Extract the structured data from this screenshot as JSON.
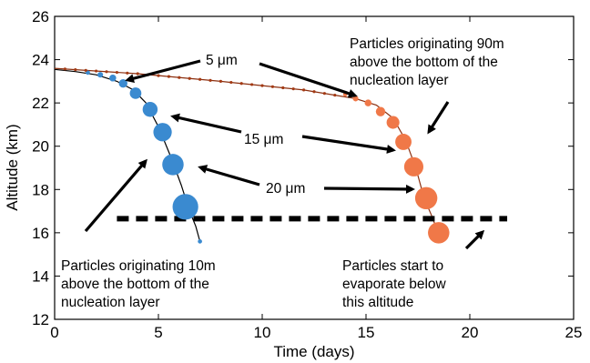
{
  "chart_data": {
    "type": "scatter",
    "xlabel": "Time (days)",
    "ylabel": "Altitude (km)",
    "xlim": [
      0,
      25
    ],
    "ylim": [
      12,
      26
    ],
    "xticks": [
      0,
      5,
      10,
      15,
      20,
      25
    ],
    "yticks": [
      12,
      14,
      16,
      18,
      20,
      22,
      24,
      26
    ],
    "grid": false,
    "colors": {
      "blue": "#3a8ad0",
      "orange": "#f07848",
      "track": "#000000",
      "track_orange": "#8b2e0e",
      "threshold": "#000000"
    },
    "series": [
      {
        "color": "blue",
        "curve": [
          [
            0,
            23.55
          ],
          [
            1,
            23.45
          ],
          [
            2,
            23.3
          ],
          [
            3,
            23.0
          ],
          [
            3.8,
            22.6
          ],
          [
            4.4,
            22.0
          ],
          [
            5.0,
            20.9
          ],
          [
            5.6,
            19.5
          ],
          [
            6.1,
            18.2
          ],
          [
            6.5,
            17.0
          ],
          [
            6.8,
            16.3
          ],
          [
            7.0,
            15.6
          ]
        ],
        "particles": [
          {
            "x": 1.6,
            "y": 23.4,
            "size": 1
          },
          {
            "x": 2.2,
            "y": 23.3,
            "size": 1.3
          },
          {
            "x": 2.8,
            "y": 23.15,
            "size": 1.6
          },
          {
            "x": 3.3,
            "y": 22.9,
            "size": 2
          },
          {
            "x": 3.9,
            "y": 22.45,
            "size": 2.7
          },
          {
            "x": 4.6,
            "y": 21.7,
            "size": 3.5
          },
          {
            "x": 5.2,
            "y": 20.65,
            "size": 4.3
          },
          {
            "x": 5.7,
            "y": 19.15,
            "size": 5
          },
          {
            "x": 6.3,
            "y": 17.2,
            "size": 6
          },
          {
            "x": 7.0,
            "y": 15.6,
            "size": 1
          }
        ]
      },
      {
        "color": "orange",
        "curve": [
          [
            0,
            23.6
          ],
          [
            4,
            23.35
          ],
          [
            8,
            23.0
          ],
          [
            12,
            22.6
          ],
          [
            14.5,
            22.2
          ],
          [
            15.5,
            21.9
          ],
          [
            16.3,
            21.3
          ],
          [
            16.9,
            20.3
          ],
          [
            17.4,
            19.0
          ],
          [
            17.8,
            17.6
          ],
          [
            18.2,
            16.7
          ],
          [
            18.5,
            15.9
          ]
        ],
        "small_dots_x": [
          0.5,
          1.0,
          1.5,
          2.0,
          2.5,
          3.0,
          3.5,
          4.0,
          4.5,
          5.0,
          5.5,
          6.0,
          6.5,
          7.0,
          7.5,
          8.0,
          8.5,
          9.0,
          9.5,
          10.0,
          10.5,
          11.0,
          11.5,
          12.0,
          12.5,
          13.0,
          13.5
        ],
        "particles": [
          {
            "x": 14.0,
            "y": 22.4,
            "size": 1
          },
          {
            "x": 14.5,
            "y": 22.2,
            "size": 1.3
          },
          {
            "x": 15.1,
            "y": 22.0,
            "size": 1.6
          },
          {
            "x": 15.7,
            "y": 21.6,
            "size": 2.2
          },
          {
            "x": 16.3,
            "y": 21.1,
            "size": 3
          },
          {
            "x": 16.8,
            "y": 20.2,
            "size": 3.8
          },
          {
            "x": 17.3,
            "y": 19.05,
            "size": 4.5
          },
          {
            "x": 17.9,
            "y": 17.6,
            "size": 5.2
          },
          {
            "x": 18.5,
            "y": 16.0,
            "size": 5
          }
        ]
      }
    ],
    "threshold": {
      "y": 16.65,
      "x_start": 3.0,
      "x_end": 21.8
    },
    "annotations": {
      "label_5um": "5 μm",
      "label_15um": "15 μm",
      "label_20um": "20 μm",
      "top_right": [
        "Particles originating 90m",
        "above the bottom of the",
        "nucleation layer"
      ],
      "bottom_left": [
        "Particles originating 10m",
        "above the bottom of the",
        "nucleation layer"
      ],
      "bottom_right": [
        "Particles start to",
        "evaporate below",
        "this altitude"
      ]
    }
  }
}
